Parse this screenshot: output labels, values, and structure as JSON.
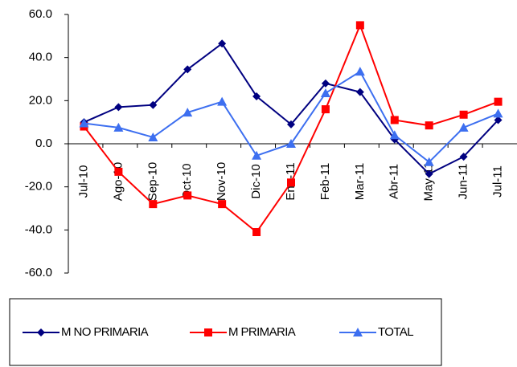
{
  "chart_data": {
    "type": "line",
    "categories": [
      "Jul-10",
      "Ago-10",
      "Sep-10",
      "Oct-10",
      "Nov-10",
      "Dic-10",
      "Ene-11",
      "Feb-11",
      "Mar-11",
      "Abr-11",
      "May-11",
      "Jun-11",
      "Jul-11"
    ],
    "series": [
      {
        "name": "M NO PRIMARIA",
        "color": "#000080",
        "marker": "diamond",
        "values": [
          10,
          17,
          18,
          34.5,
          46.5,
          22,
          9,
          28,
          24,
          2,
          -14,
          -6,
          11
        ]
      },
      {
        "name": "M PRIMARIA",
        "color": "#ff0000",
        "marker": "square",
        "values": [
          8,
          -13,
          -28,
          -24,
          -28,
          -41,
          -18,
          16,
          55,
          11,
          8.5,
          13.5,
          19.5
        ]
      },
      {
        "name": "TOTAL",
        "color": "#3d6ff0",
        "marker": "triangle",
        "values": [
          9.5,
          7.5,
          3,
          14.5,
          19.5,
          -5.5,
          0,
          23.5,
          33.5,
          4,
          -8.5,
          7.5,
          14
        ]
      }
    ],
    "ylim": [
      -60,
      60
    ],
    "yticks": [
      {
        "value": -60,
        "label": "-60.0"
      },
      {
        "value": -40,
        "label": "-40.0"
      },
      {
        "value": -20,
        "label": "-20.0"
      },
      {
        "value": 0,
        "label": "0.0"
      },
      {
        "value": 20,
        "label": "20.0"
      },
      {
        "value": 40,
        "label": "40.0"
      },
      {
        "value": 60,
        "label": "60.0"
      }
    ],
    "legend": "bottom"
  }
}
